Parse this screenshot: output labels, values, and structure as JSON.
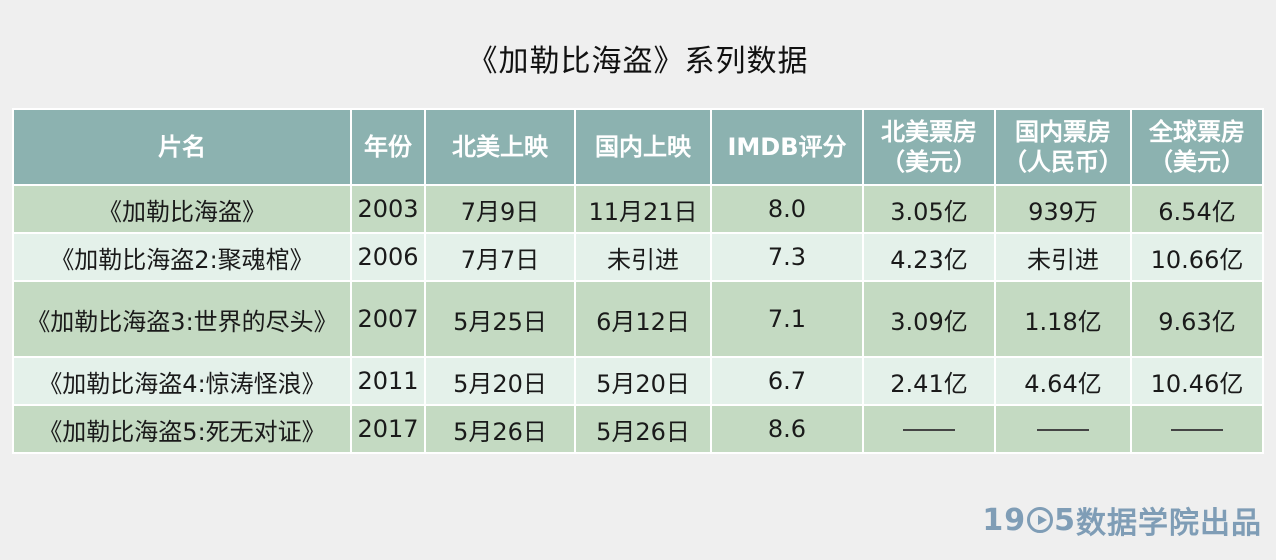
{
  "title": "《加勒比海盗》系列数据",
  "headers": [
    [
      "片名"
    ],
    [
      "年份"
    ],
    [
      "北美上映"
    ],
    [
      "国内上映"
    ],
    [
      "IMDB评分"
    ],
    [
      "北美票房",
      "（美元）"
    ],
    [
      "国内票房",
      "（人民币）"
    ],
    [
      "全球票房",
      "（美元）"
    ]
  ],
  "chart_data": {
    "type": "table",
    "title": "《加勒比海盗》系列数据",
    "columns": [
      "片名",
      "年份",
      "北美上映",
      "国内上映",
      "IMDB评分",
      "北美票房（美元）",
      "国内票房（人民币）",
      "全球票房（美元）"
    ],
    "rows": [
      [
        "《加勒比海盗》",
        "2003",
        "7月9日",
        "11月21日",
        "8.0",
        "3.05亿",
        "939万",
        "6.54亿"
      ],
      [
        "《加勒比海盗2:聚魂棺》",
        "2006",
        "7月7日",
        "未引进",
        "7.3",
        "4.23亿",
        "未引进",
        "10.66亿"
      ],
      [
        "《加勒比海盗3:世界的尽头》",
        "2007",
        "5月25日",
        "6月12日",
        "7.1",
        "3.09亿",
        "1.18亿",
        "9.63亿"
      ],
      [
        "《加勒比海盗4:惊涛怪浪》",
        "2011",
        "5月20日",
        "5月20日",
        "6.7",
        "2.41亿",
        "4.64亿",
        "10.46亿"
      ],
      [
        "《加勒比海盗5:死无对证》",
        "2017",
        "5月26日",
        "5月26日",
        "8.6",
        "——",
        "——",
        "——"
      ]
    ]
  },
  "logo": {
    "digits_before": "19",
    "digits_after": "5",
    "text": "数据学院出品"
  },
  "colors": {
    "header_bg": "#8cb2b0",
    "row_dark": "#c4dac2",
    "row_light": "#e4f1ea",
    "logo": "#7f9db6"
  }
}
